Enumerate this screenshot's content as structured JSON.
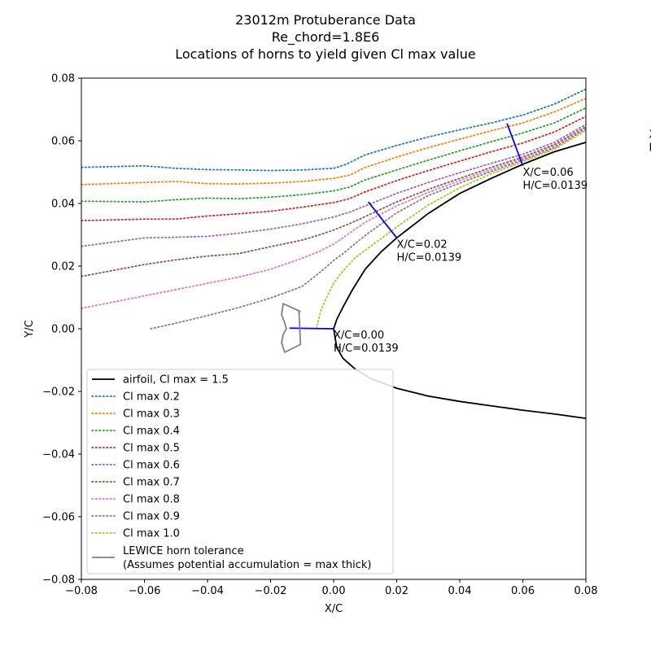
{
  "chart_data": {
    "type": "line",
    "title": [
      "23012m Protuberance Data",
      "Re_chord=1.8E6",
      "Locations of horns to yield given Cl max value"
    ],
    "xlabel": "X/C",
    "ylabel": "Y/C",
    "xlim": [
      -0.08,
      0.08
    ],
    "ylim": [
      -0.08,
      0.08
    ],
    "xticks": [
      -0.08,
      -0.06,
      -0.04,
      -0.02,
      0.0,
      0.02,
      0.04,
      0.06,
      0.08
    ],
    "yticks": [
      -0.08,
      -0.06,
      -0.04,
      -0.02,
      0.0,
      0.02,
      0.04,
      0.06,
      0.08
    ],
    "xtick_labels": [
      "−0.08",
      "−0.06",
      "−0.04",
      "−0.02",
      "0.00",
      "0.02",
      "0.04",
      "0.06",
      "0.08"
    ],
    "ytick_labels": [
      "−0.08",
      "−0.06",
      "−0.04",
      "−0.02",
      "0.00",
      "0.02",
      "0.04",
      "0.06",
      "0.08"
    ],
    "airfoil": {
      "name": "airfoil, Cl max = 1.5",
      "color": "#000000",
      "x": [
        0.08,
        0.07,
        0.06,
        0.05,
        0.04,
        0.03,
        0.02,
        0.015,
        0.01,
        0.006,
        0.003,
        0.001,
        0.0,
        0.001,
        0.003,
        0.007,
        0.012,
        0.02,
        0.03,
        0.04,
        0.05,
        0.06,
        0.07,
        0.08
      ],
      "y": [
        0.0595,
        0.0565,
        0.0525,
        0.048,
        0.0432,
        0.0368,
        0.029,
        0.0245,
        0.019,
        0.0125,
        0.007,
        0.003,
        0.0,
        -0.006,
        -0.0095,
        -0.013,
        -0.016,
        -0.019,
        -0.0215,
        -0.0232,
        -0.0246,
        -0.026,
        -0.0272,
        -0.0286
      ]
    },
    "series": [
      {
        "name": "Cl max 0.2",
        "color": "#1f77b4",
        "x": [
          -0.08,
          -0.06,
          -0.05,
          -0.04,
          -0.03,
          -0.02,
          -0.01,
          0.0,
          0.004,
          0.01,
          0.02,
          0.03,
          0.04,
          0.05,
          0.06,
          0.07,
          0.08
        ],
        "y": [
          0.0515,
          0.052,
          0.0512,
          0.0508,
          0.0507,
          0.0505,
          0.0507,
          0.0512,
          0.0525,
          0.0555,
          0.0585,
          0.0612,
          0.0635,
          0.0657,
          0.0682,
          0.0717,
          0.0765
        ]
      },
      {
        "name": "Cl max 0.3",
        "color": "#ff7f0e",
        "x": [
          -0.08,
          -0.06,
          -0.05,
          -0.04,
          -0.03,
          -0.02,
          -0.01,
          0.0,
          0.005,
          0.01,
          0.02,
          0.03,
          0.04,
          0.05,
          0.06,
          0.07,
          0.08
        ],
        "y": [
          0.046,
          0.0467,
          0.047,
          0.0463,
          0.0462,
          0.0465,
          0.047,
          0.048,
          0.049,
          0.0515,
          0.0548,
          0.0578,
          0.0605,
          0.0632,
          0.0657,
          0.0692,
          0.0735
        ]
      },
      {
        "name": "Cl max 0.4",
        "color": "#2ca02c",
        "x": [
          -0.08,
          -0.06,
          -0.05,
          -0.04,
          -0.03,
          -0.02,
          -0.01,
          0.0,
          0.005,
          0.01,
          0.02,
          0.03,
          0.04,
          0.05,
          0.06,
          0.07,
          0.08
        ],
        "y": [
          0.0407,
          0.0405,
          0.0412,
          0.0417,
          0.0415,
          0.042,
          0.0428,
          0.044,
          0.0452,
          0.0475,
          0.0507,
          0.0538,
          0.0568,
          0.0597,
          0.0625,
          0.0657,
          0.0705
        ]
      },
      {
        "name": "Cl max 0.5",
        "color": "#d62728",
        "x": [
          -0.08,
          -0.06,
          -0.05,
          -0.04,
          -0.03,
          -0.02,
          -0.01,
          0.0,
          0.005,
          0.01,
          0.02,
          0.03,
          0.04,
          0.05,
          0.06,
          0.07,
          0.08
        ],
        "y": [
          0.0345,
          0.035,
          0.035,
          0.036,
          0.0367,
          0.0375,
          0.0388,
          0.0403,
          0.0415,
          0.0437,
          0.0473,
          0.0505,
          0.0535,
          0.0565,
          0.0593,
          0.0628,
          0.0678
        ]
      },
      {
        "name": "Cl max 0.6",
        "color": "#9467bd",
        "x": [
          -0.08,
          -0.06,
          -0.05,
          -0.04,
          -0.03,
          -0.02,
          -0.01,
          0.0,
          0.005,
          0.01,
          0.02,
          0.03,
          0.04,
          0.05,
          0.06,
          0.07,
          0.08
        ],
        "y": [
          0.0263,
          0.029,
          0.0292,
          0.0295,
          0.0305,
          0.0318,
          0.0335,
          0.0357,
          0.0372,
          0.0392,
          0.0432,
          0.0467,
          0.0498,
          0.0528,
          0.0557,
          0.0595,
          0.0652
        ]
      },
      {
        "name": "Cl max 0.7",
        "color": "#8c564b",
        "x": [
          -0.08,
          -0.06,
          -0.05,
          -0.04,
          -0.03,
          -0.02,
          -0.01,
          -0.005,
          0.0,
          0.005,
          0.01,
          0.02,
          0.03,
          0.04,
          0.05,
          0.06,
          0.07,
          0.08
        ],
        "y": [
          0.0167,
          0.0205,
          0.022,
          0.0232,
          0.024,
          0.0262,
          0.0283,
          0.0298,
          0.0315,
          0.0335,
          0.0358,
          0.0405,
          0.0445,
          0.048,
          0.0515,
          0.0548,
          0.0588,
          0.0645
        ]
      },
      {
        "name": "Cl max 0.8",
        "color": "#e377c2",
        "x": [
          -0.08,
          -0.07,
          -0.06,
          -0.05,
          -0.04,
          -0.03,
          -0.02,
          -0.01,
          -0.005,
          0.0,
          0.005,
          0.01,
          0.02,
          0.03,
          0.04,
          0.05,
          0.06,
          0.07,
          0.08
        ],
        "y": [
          0.0065,
          0.0085,
          0.0105,
          0.0125,
          0.0145,
          0.0165,
          0.019,
          0.0225,
          0.0245,
          0.027,
          0.0305,
          0.034,
          0.0392,
          0.0435,
          0.0473,
          0.0508,
          0.0543,
          0.0583,
          0.0642
        ]
      },
      {
        "name": "Cl max 0.9",
        "color": "#7f7f7f",
        "x": [
          -0.058,
          -0.05,
          -0.04,
          -0.03,
          -0.02,
          -0.01,
          -0.005,
          -0.002,
          0.0,
          0.003,
          0.006,
          0.01,
          0.02,
          0.03,
          0.04,
          0.05,
          0.06,
          0.07,
          0.08
        ],
        "y": [
          0.0,
          0.0018,
          0.0042,
          0.0068,
          0.0098,
          0.0135,
          0.0175,
          0.02,
          0.0218,
          0.024,
          0.0265,
          0.0298,
          0.037,
          0.0425,
          0.0465,
          0.0502,
          0.0538,
          0.0578,
          0.0638
        ]
      },
      {
        "name": "Cl max 1.0",
        "color": "#bcbd22",
        "x": [
          -0.0055,
          -0.005,
          -0.004,
          -0.002,
          0.0,
          0.003,
          0.007,
          0.012,
          0.02,
          0.03,
          0.04,
          0.05,
          0.06,
          0.07,
          0.08
        ],
        "y": [
          0.0,
          0.002,
          0.006,
          0.0105,
          0.0145,
          0.0185,
          0.0228,
          0.0265,
          0.0325,
          0.0395,
          0.045,
          0.0495,
          0.0533,
          0.0573,
          0.0632
        ]
      }
    ],
    "horns": [
      {
        "color": "#0000ff",
        "x": [
          0.0,
          -0.014
        ],
        "y": [
          0.0,
          0.0002
        ]
      },
      {
        "color": "#0000ff",
        "x": [
          0.02,
          0.011
        ],
        "y": [
          0.029,
          0.0405
        ]
      },
      {
        "color": "#0000ff",
        "x": [
          0.06,
          0.055
        ],
        "y": [
          0.052,
          0.0655
        ]
      }
    ],
    "tolerance": {
      "name": "LEWICE horn tolerance",
      "name2": "(Assumes potential accumulation = max thick)",
      "color": "#808080",
      "x": [
        -0.011,
        -0.0105,
        -0.0155,
        -0.0165,
        -0.016,
        -0.015,
        -0.0155,
        -0.0165,
        -0.016,
        -0.0105,
        -0.011
      ],
      "y": [
        0.0055,
        -0.005,
        -0.0075,
        -0.0045,
        -0.0018,
        0.0,
        0.0018,
        0.0045,
        0.008,
        0.0055,
        0.0055
      ]
    },
    "annotations": [
      {
        "x": 0.0,
        "y": 0.0,
        "line1": "X/C=0.00",
        "line2": "H/C=0.0139"
      },
      {
        "x": 0.02,
        "y": 0.029,
        "line1": "X/C=0.02",
        "line2": "H/C=0.0139"
      },
      {
        "x": 0.06,
        "y": 0.052,
        "line1": "X/C=0.06",
        "line2": "H/C=0.0139"
      },
      {
        "x": 0.1,
        "y": 0.064,
        "line1": "X/C",
        "line2": "H/C"
      }
    ],
    "legend_position": "lower-left"
  }
}
